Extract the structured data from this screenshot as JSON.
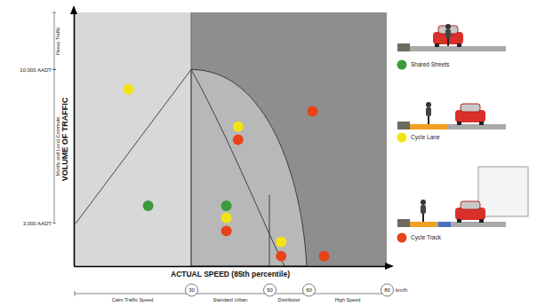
{
  "chart_data": {
    "type": "scatter",
    "x_label": "ACTUAL SPEED (85th percentile)",
    "y_label": "VOLUME OF TRAFFIC",
    "x_unit": "km/h",
    "xlim": [
      0,
      80
    ],
    "xticks": [
      30,
      50,
      60,
      80
    ],
    "ylim": [
      1050,
      12600
    ],
    "yticks": [
      {
        "value": 3000,
        "label": "3,000 AADT"
      },
      {
        "value": 10000,
        "label": "10,000 AADT"
      }
    ],
    "x_bands": [
      {
        "label": "Calm Traffic Speed",
        "from": 0,
        "to": 30
      },
      {
        "label": "Standard Urban",
        "from": 30,
        "to": 50
      },
      {
        "label": "Distributor",
        "from": 50,
        "to": 60
      },
      {
        "label": "High Speed",
        "from": 60,
        "to": 80
      }
    ],
    "y_bands": [
      {
        "label": "Heavy Traffic",
        "from": 10000,
        "to": 12600
      },
      {
        "label": "Mostly and Local Commute",
        "from": 3000,
        "to": 10000
      }
    ],
    "series": [
      {
        "name": "Shared Streets",
        "color": "#3c9a3c",
        "x": [
          19,
          39
        ],
        "values": [
          3800,
          3800
        ]
      },
      {
        "name": "Cycle Lane",
        "color": "#f2e414",
        "x": [
          14,
          42,
          39,
          53
        ],
        "values": [
          9100,
          7400,
          3250,
          2150
        ]
      },
      {
        "name": "Cycle Track",
        "color": "#e8421a",
        "x": [
          42,
          61,
          39,
          53,
          64
        ],
        "values": [
          6800,
          8100,
          2650,
          1500,
          1500
        ]
      }
    ],
    "marker": "circle",
    "legend": "right",
    "grid": false
  }
}
